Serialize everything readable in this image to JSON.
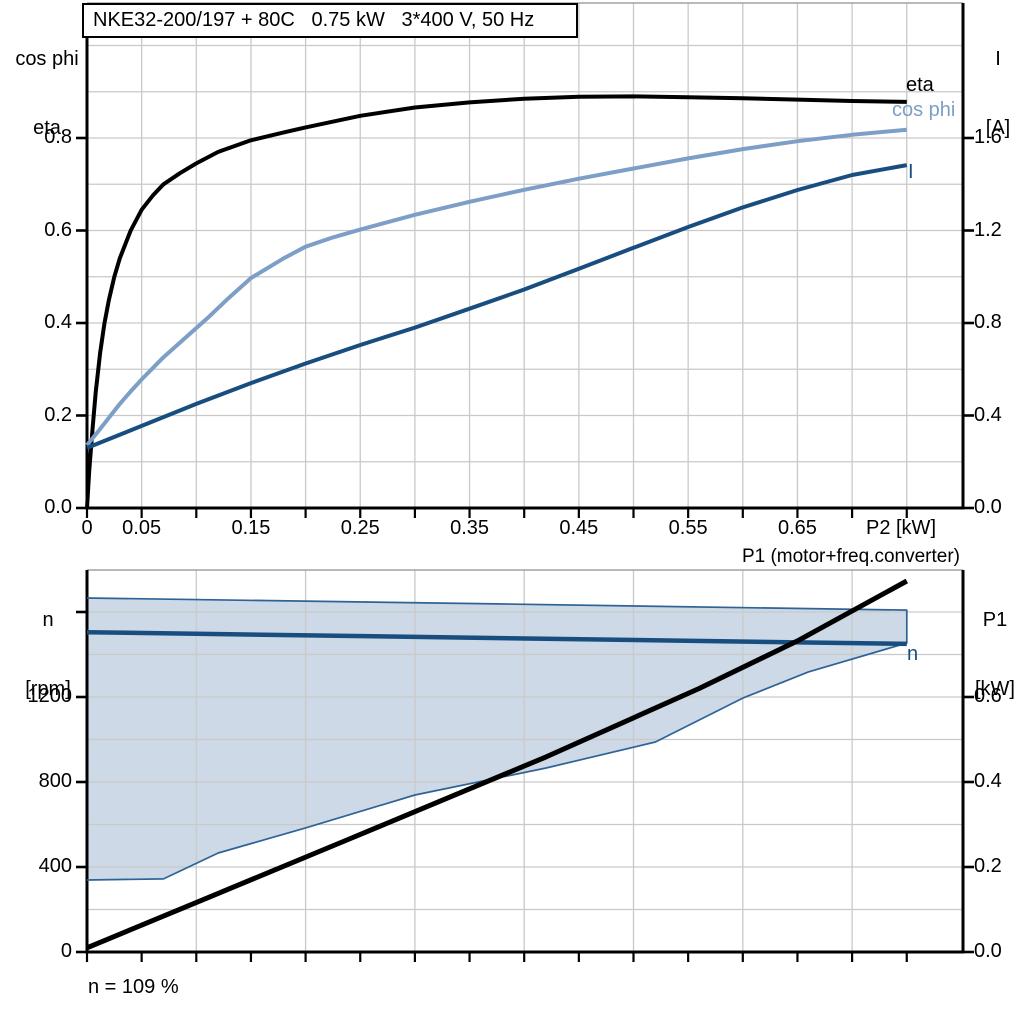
{
  "title": "NKE32-200/197 + 80C   0.75 kW   3*400 V, 50 Hz",
  "annotation": "n = 109 %",
  "colors": {
    "eta": "#000000",
    "cos_phi": "#7d9ec6",
    "current": "#184e7f",
    "speed_line": "#184e7f",
    "area_fill": "#cdd9e6",
    "area_stroke": "#2e6396",
    "grid": "#c9c9c9",
    "axis": "#000000",
    "frame_top": "#8f8f8f",
    "p1_line": "#000000"
  },
  "top_chart": {
    "left_axis": {
      "title_line1": "cos phi",
      "title_line2": "eta",
      "ticks": [
        {
          "label": "0.0",
          "value": 0
        },
        {
          "label": "0.2",
          "value": 0.2
        },
        {
          "label": "0.4",
          "value": 0.4
        },
        {
          "label": "0.6",
          "value": 0.6
        },
        {
          "label": "0.8",
          "value": 0.8
        }
      ]
    },
    "right_axis": {
      "title_line1": "I",
      "title_line2": "[A]",
      "ticks": [
        {
          "label": "0.0",
          "value": 0
        },
        {
          "label": "0.4",
          "value": 0.4
        },
        {
          "label": "0.8",
          "value": 0.8
        },
        {
          "label": "1.2",
          "value": 1.2
        },
        {
          "label": "1.6",
          "value": 1.6
        }
      ]
    },
    "x_axis": {
      "title": "P2 [kW]",
      "tick_labels": [
        {
          "label": "0",
          "value": 0
        },
        {
          "label": "0.05",
          "value": 0.05
        },
        {
          "label": "0.15",
          "value": 0.15
        },
        {
          "label": "0.25",
          "value": 0.25
        },
        {
          "label": "0.35",
          "value": 0.35
        },
        {
          "label": "0.45",
          "value": 0.45
        },
        {
          "label": "0.55",
          "value": 0.55
        },
        {
          "label": "0.65",
          "value": 0.65
        }
      ]
    },
    "curve_labels": {
      "eta": "eta",
      "cos_phi": "cos phi",
      "current": "I"
    }
  },
  "bottom_chart": {
    "left_axis": {
      "title_line1": "n",
      "title_line2": "[rpm]",
      "ticks": [
        {
          "label": "0",
          "value": 0
        },
        {
          "label": "400",
          "value": 400
        },
        {
          "label": "800",
          "value": 800
        },
        {
          "label": "1200",
          "value": 1200
        }
      ],
      "tick_marks": [
        0,
        400,
        800,
        1200,
        1600
      ]
    },
    "right_axis": {
      "title_line1": "P1",
      "title_line2": "[kW]",
      "ticks": [
        {
          "label": "0.0",
          "value": 0
        },
        {
          "label": "0.2",
          "value": 0.2
        },
        {
          "label": "0.4",
          "value": 0.4
        },
        {
          "label": "0.6",
          "value": 0.6
        }
      ]
    },
    "p1_label": "P1 (motor+freq.converter)",
    "n_label": "n"
  },
  "chart_data": [
    {
      "type": "line",
      "title": "NKE32-200/197 + 80C  0.75 kW  3*400 V, 50 Hz",
      "xlabel": "P2 [kW]",
      "x_range": [
        0,
        0.8
      ],
      "left_axis": {
        "label": "cos phi / eta",
        "range": [
          0,
          1.09
        ],
        "tick_step": 0.2
      },
      "right_axis": {
        "label": "I [A]",
        "range": [
          0,
          2.18
        ],
        "tick_step": 0.4
      },
      "grid": true,
      "series": [
        {
          "name": "eta",
          "axis": "left",
          "color_key": "eta",
          "points": [
            [
              0,
              0
            ],
            [
              0.002,
              0.08
            ],
            [
              0.005,
              0.17
            ],
            [
              0.008,
              0.25
            ],
            [
              0.012,
              0.335
            ],
            [
              0.016,
              0.4
            ],
            [
              0.02,
              0.45
            ],
            [
              0.025,
              0.5
            ],
            [
              0.03,
              0.54
            ],
            [
              0.04,
              0.6
            ],
            [
              0.05,
              0.645
            ],
            [
              0.06,
              0.675
            ],
            [
              0.07,
              0.7
            ],
            [
              0.085,
              0.724
            ],
            [
              0.1,
              0.745
            ],
            [
              0.12,
              0.77
            ],
            [
              0.15,
              0.795
            ],
            [
              0.18,
              0.812
            ],
            [
              0.2,
              0.823
            ],
            [
              0.25,
              0.848
            ],
            [
              0.3,
              0.866
            ],
            [
              0.35,
              0.877
            ],
            [
              0.4,
              0.885
            ],
            [
              0.45,
              0.889
            ],
            [
              0.5,
              0.89
            ],
            [
              0.55,
              0.888
            ],
            [
              0.6,
              0.886
            ],
            [
              0.65,
              0.883
            ],
            [
              0.7,
              0.88
            ],
            [
              0.75,
              0.878
            ]
          ]
        },
        {
          "name": "cos phi",
          "axis": "left",
          "color_key": "cos_phi",
          "points": [
            [
              0,
              0.136
            ],
            [
              0.01,
              0.165
            ],
            [
              0.02,
              0.195
            ],
            [
              0.03,
              0.225
            ],
            [
              0.04,
              0.252
            ],
            [
              0.05,
              0.278
            ],
            [
              0.07,
              0.326
            ],
            [
              0.09,
              0.368
            ],
            [
              0.11,
              0.41
            ],
            [
              0.13,
              0.455
            ],
            [
              0.15,
              0.497
            ],
            [
              0.18,
              0.54
            ],
            [
              0.2,
              0.565
            ],
            [
              0.225,
              0.585
            ],
            [
              0.25,
              0.602
            ],
            [
              0.3,
              0.634
            ],
            [
              0.35,
              0.662
            ],
            [
              0.4,
              0.688
            ],
            [
              0.45,
              0.712
            ],
            [
              0.5,
              0.734
            ],
            [
              0.55,
              0.756
            ],
            [
              0.6,
              0.776
            ],
            [
              0.65,
              0.793
            ],
            [
              0.7,
              0.807
            ],
            [
              0.75,
              0.818
            ]
          ]
        },
        {
          "name": "I",
          "axis": "right",
          "color_key": "current",
          "points": [
            [
              0,
              0.26
            ],
            [
              0.05,
              0.355
            ],
            [
              0.1,
              0.45
            ],
            [
              0.15,
              0.54
            ],
            [
              0.2,
              0.625
            ],
            [
              0.25,
              0.705
            ],
            [
              0.3,
              0.78
            ],
            [
              0.35,
              0.862
            ],
            [
              0.4,
              0.945
            ],
            [
              0.45,
              1.035
            ],
            [
              0.5,
              1.125
            ],
            [
              0.55,
              1.215
            ],
            [
              0.6,
              1.3
            ],
            [
              0.65,
              1.375
            ],
            [
              0.7,
              1.44
            ],
            [
              0.75,
              1.483
            ]
          ]
        }
      ]
    },
    {
      "type": "line",
      "xlabel": "",
      "x_range": [
        0,
        0.8
      ],
      "left_axis": {
        "label": "n [rpm]",
        "range": [
          0,
          1795
        ],
        "tick_step": 400
      },
      "right_axis": {
        "label": "P1 [kW]",
        "range": [
          0,
          0.9
        ],
        "tick_step": 0.2
      },
      "grid": true,
      "annotation": "n = 109 %",
      "series": [
        {
          "name": "speed control range",
          "kind": "area",
          "axis": "left",
          "fill_key": "area_fill",
          "stroke_key": "area_stroke",
          "upper": [
            [
              0,
              1666
            ],
            [
              0.375,
              1638
            ],
            [
              0.75,
              1609
            ]
          ],
          "lower": [
            [
              0,
              339
            ],
            [
              0.07,
              344
            ],
            [
              0.12,
              466
            ],
            [
              0.2,
              584
            ],
            [
              0.3,
              739
            ],
            [
              0.42,
              866
            ],
            [
              0.52,
              988
            ],
            [
              0.6,
              1195
            ],
            [
              0.66,
              1318
            ],
            [
              0.75,
              1454
            ]
          ]
        },
        {
          "name": "n",
          "axis": "left",
          "color_key": "speed_line",
          "points": [
            [
              0,
              1505
            ],
            [
              0.75,
              1450
            ]
          ]
        },
        {
          "name": "P1 (motor+freq.converter)",
          "axis": "right",
          "color_key": "p1_line",
          "points": [
            [
              0,
              0.01
            ],
            [
              0.12,
              0.138
            ],
            [
              0.24,
              0.266
            ],
            [
              0.42,
              0.459
            ],
            [
              0.56,
              0.62
            ],
            [
              0.65,
              0.732
            ],
            [
              0.75,
              0.873
            ]
          ]
        }
      ]
    }
  ]
}
